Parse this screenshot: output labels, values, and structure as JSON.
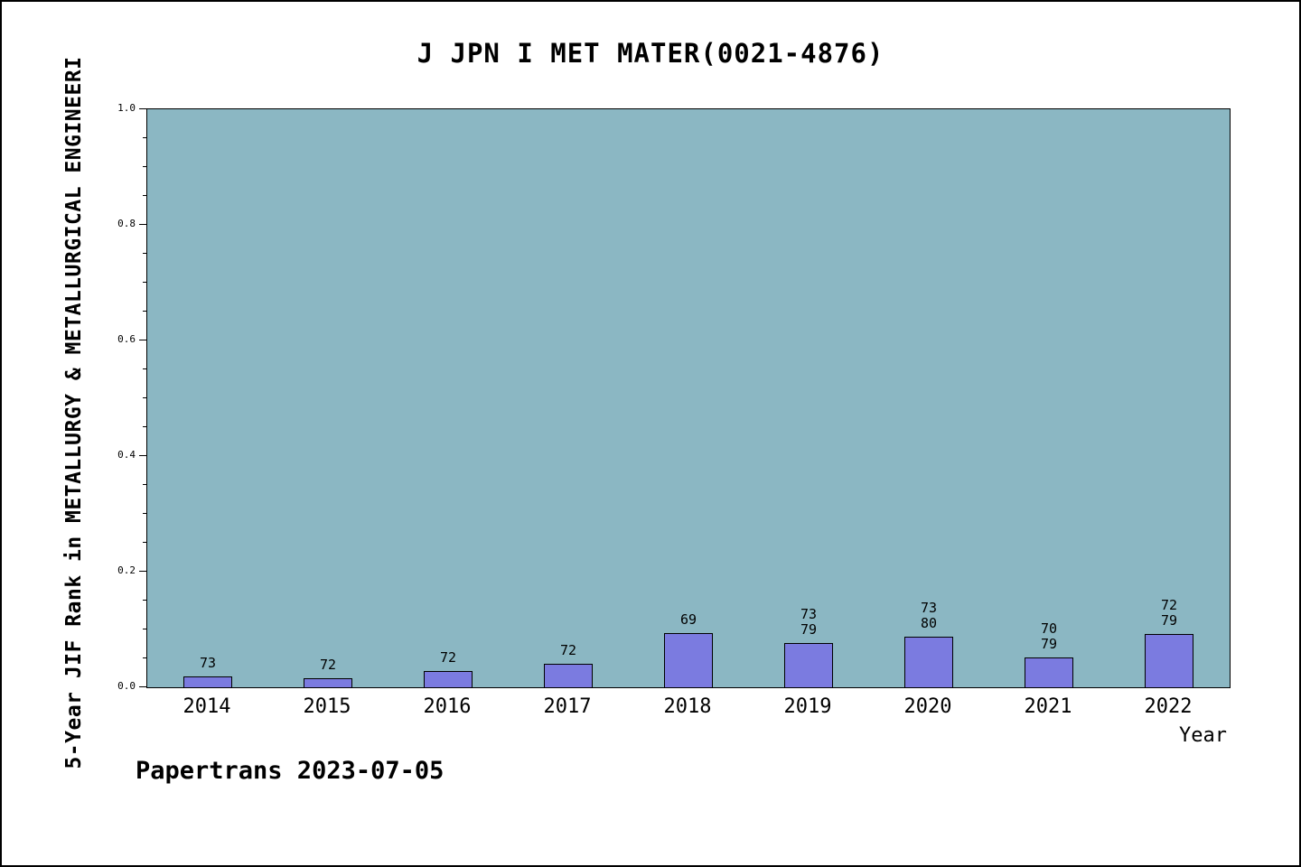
{
  "title": "J JPN I MET MATER(0021-4876)",
  "footer": "Papertrans 2023-07-05",
  "chart_data": {
    "type": "bar",
    "title": "J JPN I MET MATER(0021-4876)",
    "xlabel": "Year",
    "ylabel": "5-Year JIF Rank in METALLURGY & METALLURGICAL ENGINEERI",
    "categories": [
      "2014",
      "2015",
      "2016",
      "2017",
      "2018",
      "2019",
      "2020",
      "2021",
      "2022"
    ],
    "values": [
      0.018,
      0.016,
      0.028,
      0.04,
      0.094,
      0.076,
      0.087,
      0.051,
      0.092
    ],
    "bar_labels": [
      [
        "73"
      ],
      [
        "72"
      ],
      [
        "72"
      ],
      [
        "72"
      ],
      [
        "69"
      ],
      [
        "73",
        "79"
      ],
      [
        "73",
        "80"
      ],
      [
        "70",
        "79"
      ],
      [
        "72",
        "79"
      ]
    ],
    "ylim": [
      0,
      1.0
    ],
    "ytick_values": [
      0,
      0.2,
      0.4,
      0.6,
      0.8,
      1.0
    ],
    "ytick_labels": [
      "0.0",
      "0.2",
      "0.4",
      "0.6",
      "0.8",
      "1.0"
    ],
    "minor_tick_step": 0.05,
    "grid": false,
    "legend": null,
    "colors": {
      "plot_bg": "#8BB7C3",
      "bar_fill": "#7B7BE0",
      "bar_edge": "#000000"
    }
  }
}
